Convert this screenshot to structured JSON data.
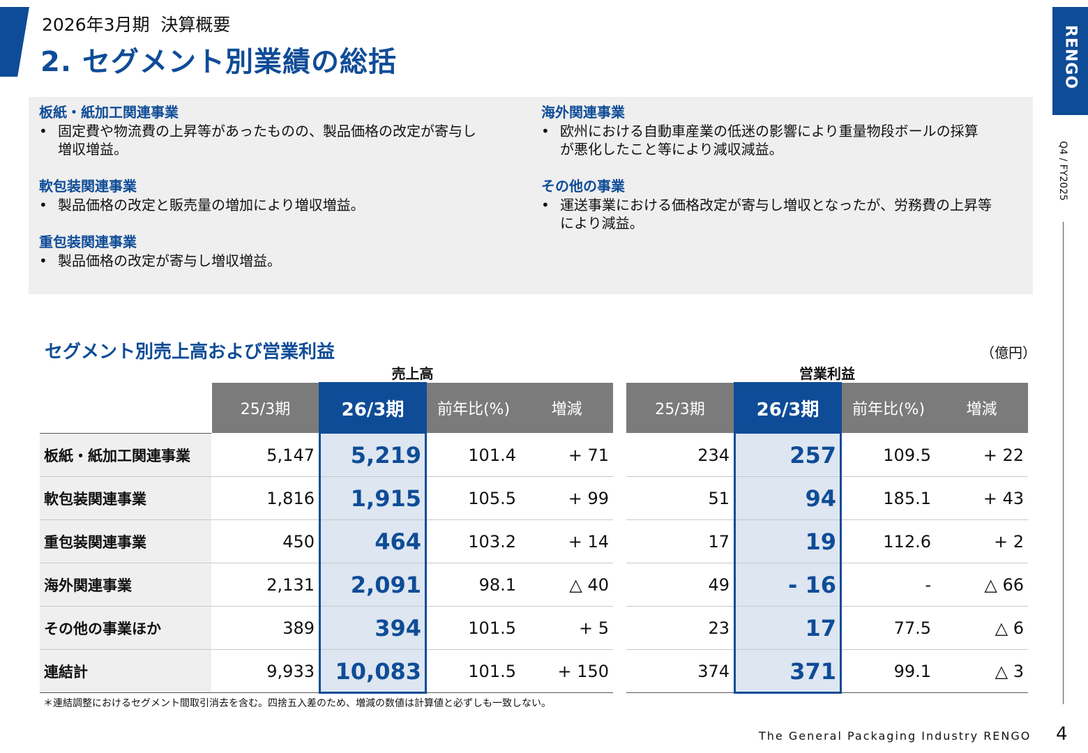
{
  "header": {
    "subtitle": "2026年3月期  決算概要",
    "title": "2. セグメント別業績の総括",
    "logo": "RENGO",
    "side_label": "Q4 / FY2025"
  },
  "summary": {
    "left": [
      {
        "heading": "板紙・紙加工関連事業",
        "lines": [
          "固定費や物流費の上昇等があったものの、製品価格の改定が寄与し",
          "増収増益。"
        ]
      },
      {
        "heading": "軟包装関連事業",
        "lines": [
          "製品価格の改定と販売量の増加により増収増益。"
        ]
      },
      {
        "heading": "重包装関連事業",
        "lines": [
          "製品価格の改定が寄与し増収増益。"
        ]
      }
    ],
    "right": [
      {
        "heading": "海外関連事業",
        "lines": [
          "欧州における自動車産業の低迷の影響により重量物段ボールの採算",
          "が悪化したこと等により減収減益。"
        ]
      },
      {
        "heading": "その他の事業",
        "lines": [
          "運送事業における価格改定が寄与し増収となったが、労務費の上昇等",
          "により減益。"
        ]
      }
    ],
    "bullet_symbol": "•"
  },
  "table": {
    "title": "セグメント別売上高および営業利益",
    "unit": "（億円）",
    "groups": [
      "売上高",
      "営業利益"
    ],
    "columns": [
      "25/3期",
      "26/3期",
      "前年比(%)",
      "増減"
    ],
    "rows": [
      {
        "label": "板紙・紙加工関連事業",
        "sales": [
          "5,147",
          "5,219",
          "101.4",
          "+ 71"
        ],
        "profit": [
          "234",
          "257",
          "109.5",
          "+ 22"
        ]
      },
      {
        "label": "軟包装関連事業",
        "sales": [
          "1,816",
          "1,915",
          "105.5",
          "+ 99"
        ],
        "profit": [
          "51",
          "94",
          "185.1",
          "+ 43"
        ]
      },
      {
        "label": "重包装関連事業",
        "sales": [
          "450",
          "464",
          "103.2",
          "+ 14"
        ],
        "profit": [
          "17",
          "19",
          "112.6",
          "+ 2"
        ]
      },
      {
        "label": "海外関連事業",
        "sales": [
          "2,131",
          "2,091",
          "98.1",
          "△ 40"
        ],
        "profit": [
          "49",
          "- 16",
          "-",
          "△ 66"
        ]
      },
      {
        "label": "その他の事業ほか",
        "sales": [
          "389",
          "394",
          "101.5",
          "+ 5"
        ],
        "profit": [
          "23",
          "17",
          "77.5",
          "△ 6"
        ]
      },
      {
        "label": "連結計",
        "sales": [
          "9,933",
          "10,083",
          "101.5",
          "+ 150"
        ],
        "profit": [
          "374",
          "371",
          "99.1",
          "△ 3"
        ]
      }
    ],
    "footnote": "＊連結調整におけるセグメント間取引消去を含む。四捨五入差のため、増減の数値は計算値と必ずしも一致しない。"
  },
  "footer": {
    "company": "The General Packaging Industry RENGO",
    "page": "4"
  }
}
